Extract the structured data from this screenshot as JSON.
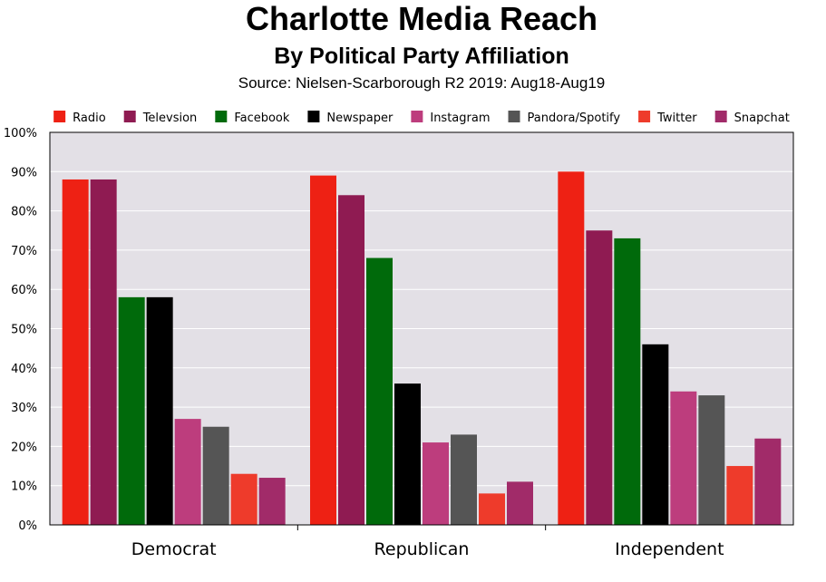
{
  "chart_data": {
    "type": "bar",
    "title": "Charlotte Media Reach",
    "subtitle": "By Political Party Affiliation",
    "source": "Source: Nielsen-Scarborough R2 2019: Aug18-Aug19",
    "categories": [
      "Democrat",
      "Republican",
      "Independent"
    ],
    "series": [
      {
        "name": "Radio",
        "color": "#ee2114",
        "values": [
          88,
          89,
          90
        ]
      },
      {
        "name": "Televsion",
        "color": "#8f1b52",
        "values": [
          88,
          84,
          75
        ]
      },
      {
        "name": "Facebook",
        "color": "#006a0b",
        "values": [
          58,
          68,
          73
        ]
      },
      {
        "name": "Newspaper",
        "color": "#000000",
        "values": [
          58,
          36,
          46
        ]
      },
      {
        "name": "Instagram",
        "color": "#bd3d7d",
        "values": [
          27,
          21,
          34
        ]
      },
      {
        "name": "Pandora/Spotify",
        "color": "#555555",
        "values": [
          25,
          23,
          33
        ]
      },
      {
        "name": "Twitter",
        "color": "#ee3b2b",
        "values": [
          13,
          8,
          15
        ]
      },
      {
        "name": "Snapchat",
        "color": "#a12b69",
        "values": [
          12,
          11,
          22
        ]
      }
    ],
    "ylim": [
      0,
      100
    ],
    "yticks": [
      "0%",
      "10%",
      "20%",
      "30%",
      "40%",
      "50%",
      "60%",
      "70%",
      "80%",
      "90%",
      "100%"
    ],
    "grid": true,
    "legend": "top",
    "plot_background": "#e3e0e6"
  }
}
